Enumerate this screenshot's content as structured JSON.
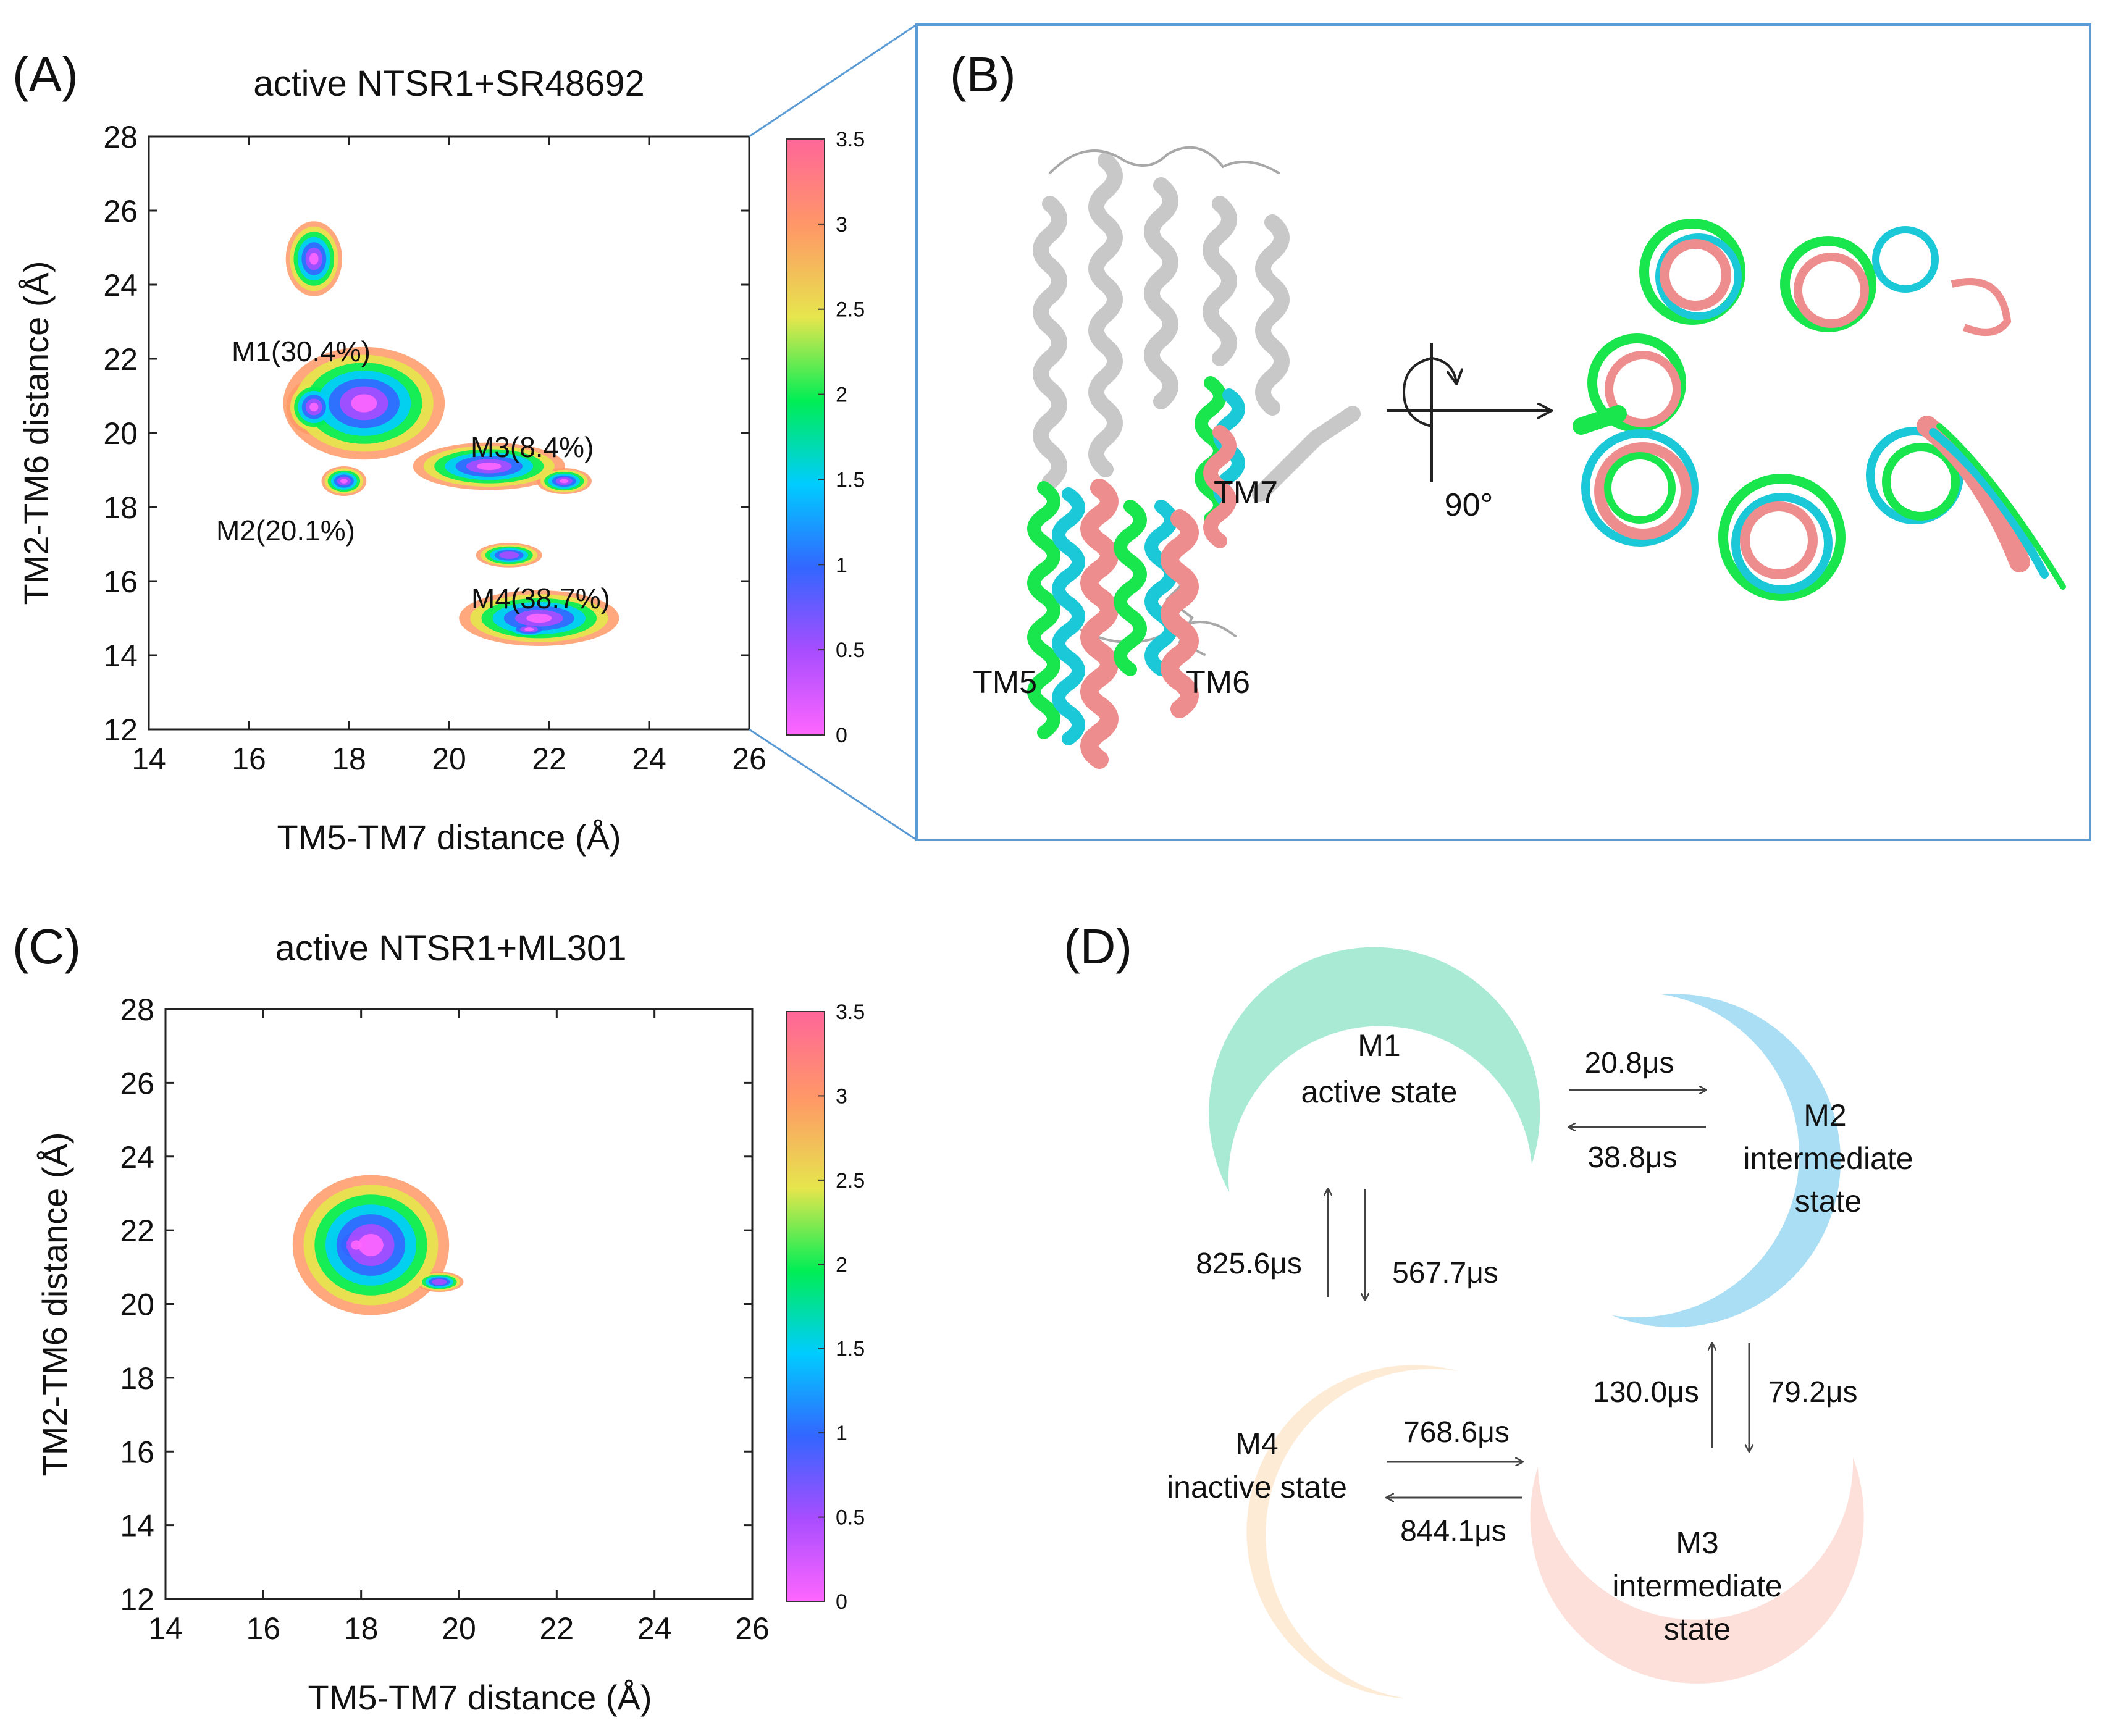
{
  "panels": {
    "A": {
      "label": "(A)",
      "title": "active NTSR1+SR48692",
      "xlabel": "TM5-TM7 distance (Å)",
      "ylabel": "TM2-TM6 distance (Å)",
      "basins": [
        "M1(30.4%)",
        "M2(20.1%)",
        "M3(8.4%)",
        "M4(38.7%)"
      ]
    },
    "B": {
      "label": "(B)",
      "helix_labels": [
        "TM5",
        "TM6",
        "TM7"
      ],
      "rotation_label": "90°"
    },
    "C": {
      "label": "(C)",
      "title": "active NTSR1+ML301",
      "xlabel": "TM5-TM7 distance (Å)",
      "ylabel": "TM2-TM6 distance (Å)"
    },
    "D": {
      "label": "(D)",
      "states": {
        "M1": {
          "name": "M1",
          "desc": [
            "active state"
          ],
          "color": "#a8ead3"
        },
        "M2": {
          "name": "M2",
          "desc": [
            "intermediate",
            "state"
          ],
          "color": "#a9def4"
        },
        "M3": {
          "name": "M3",
          "desc": [
            "intermediate",
            "state"
          ],
          "color": "#fde0da"
        },
        "M4": {
          "name": "M4",
          "desc": [
            "inactive state"
          ],
          "color": "#fdebd6"
        }
      },
      "transitions": {
        "M1_to_M2": "20.8μs",
        "M2_to_M1": "38.8μs",
        "M4_to_M1": "825.6μs",
        "M1_to_M4": "567.7μs",
        "M3_to_M2": "130.0μs",
        "M2_to_M3": "79.2μs",
        "M4_to_M3": "768.6μs",
        "M3_to_M4": "844.1μs"
      }
    }
  },
  "colorbar": {
    "ticks": [
      "0",
      "0.5",
      "1",
      "1.5",
      "2",
      "2.5",
      "3",
      "3.5"
    ],
    "colors": [
      "#ff66ff",
      "#a84dff",
      "#3366ff",
      "#00ccff",
      "#00ee55",
      "#e6e64d",
      "#ff9966",
      "#ff6699"
    ]
  },
  "chart_data": [
    {
      "type": "heatmap",
      "title": "active NTSR1+SR48692",
      "xlabel": "TM5-TM7 distance (Å)",
      "ylabel": "TM2-TM6 distance (Å)",
      "xlim": [
        14,
        26
      ],
      "ylim": [
        12,
        28
      ],
      "xticks": [
        "14",
        "16",
        "18",
        "20",
        "22",
        "24",
        "26"
      ],
      "yticks": [
        "12",
        "14",
        "16",
        "18",
        "20",
        "22",
        "24",
        "26",
        "28"
      ],
      "colorbar_range": [
        0,
        3.5
      ],
      "grid": false,
      "basins": [
        {
          "label": "M1(30.4%)",
          "x": 17.3,
          "y": 20.6,
          "population_pct": 30.4
        },
        {
          "label": "M2(20.1%)",
          "x": 17.9,
          "y": 18.7,
          "population_pct": 20.1
        },
        {
          "label": "M3(8.4%)",
          "x": 22.3,
          "y": 18.8,
          "population_pct": 8.4
        },
        {
          "label": "M4(38.7%)",
          "x": 21.6,
          "y": 14.7,
          "population_pct": 38.7
        }
      ],
      "blobs": [
        {
          "x": 18.3,
          "y": 20.8,
          "sx": 1.7,
          "sy": 1.6,
          "level": 0.95
        },
        {
          "x": 17.3,
          "y": 24.7,
          "sx": 0.75,
          "sy": 1.35,
          "level": 0.75
        },
        {
          "x": 20.8,
          "y": 19.1,
          "sx": 1.9,
          "sy": 0.8,
          "level": 0.8
        },
        {
          "x": 21.8,
          "y": 15.0,
          "sx": 1.6,
          "sy": 0.75,
          "level": 1.0
        },
        {
          "x": 21.2,
          "y": 16.7,
          "sx": 1.1,
          "sy": 0.55,
          "level": 0.6
        },
        {
          "x": 17.3,
          "y": 20.7,
          "sx": 0.55,
          "sy": 0.75,
          "level": 1.0
        },
        {
          "x": 17.9,
          "y": 18.7,
          "sx": 0.45,
          "sy": 0.4,
          "level": 1.0
        },
        {
          "x": 22.3,
          "y": 18.7,
          "sx": 0.55,
          "sy": 0.35,
          "level": 1.0
        },
        {
          "x": 21.6,
          "y": 14.7,
          "sx": 0.6,
          "sy": 0.28,
          "level": 1.0
        }
      ]
    },
    {
      "type": "heatmap",
      "title": "active NTSR1+ML301",
      "xlabel": "TM5-TM7 distance (Å)",
      "ylabel": "TM2-TM6 distance (Å)",
      "xlim": [
        14,
        26
      ],
      "ylim": [
        12,
        28
      ],
      "xticks": [
        "14",
        "16",
        "18",
        "20",
        "22",
        "24",
        "26"
      ],
      "yticks": [
        "12",
        "14",
        "16",
        "18",
        "20",
        "22",
        "24",
        "26",
        "28"
      ],
      "colorbar_range": [
        0,
        3.5
      ],
      "grid": false,
      "blobs": [
        {
          "x": 18.2,
          "y": 21.6,
          "sx": 1.6,
          "sy": 1.9,
          "level": 1.0
        },
        {
          "x": 19.6,
          "y": 20.6,
          "sx": 0.9,
          "sy": 0.5,
          "level": 0.55
        },
        {
          "x": 17.9,
          "y": 21.6,
          "sx": 0.7,
          "sy": 0.8,
          "level": 1.0
        }
      ]
    }
  ]
}
